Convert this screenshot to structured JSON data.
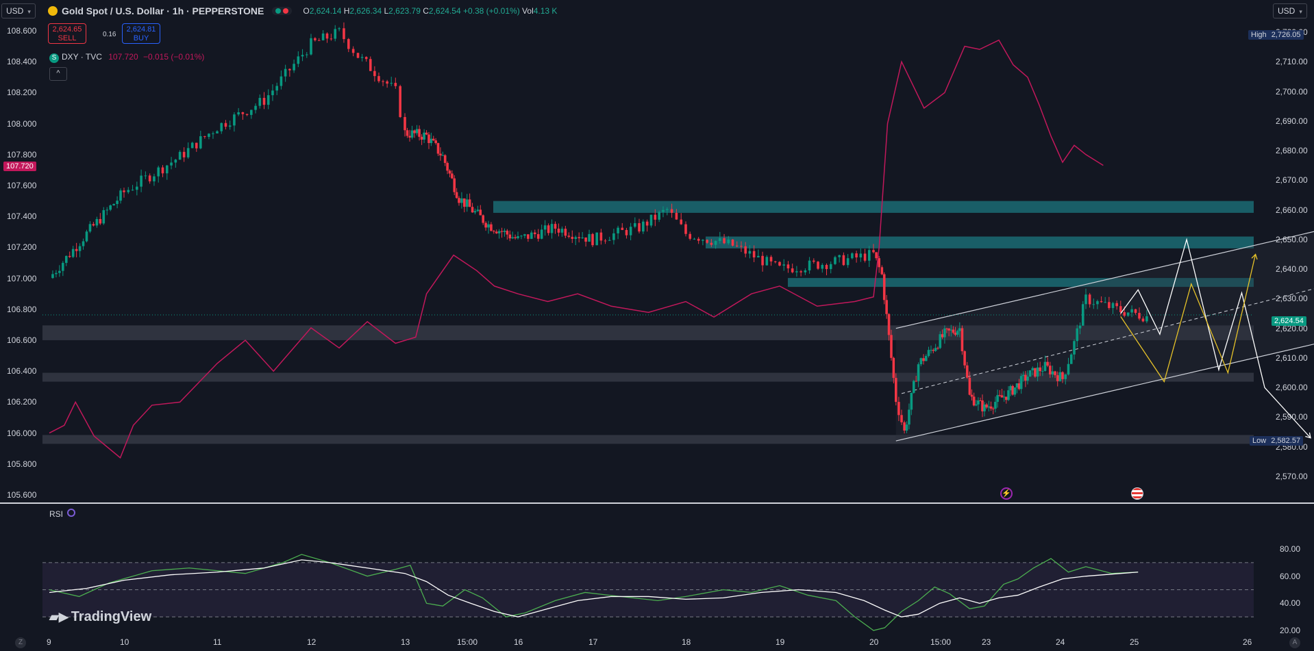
{
  "toolbar": {
    "currency_left": "USD",
    "currency_right": "USD",
    "symbol_title": "Gold Spot / U.S. Dollar · 1h · PEPPERSTONE",
    "ohlc": {
      "o_label": "O",
      "o": "2,624.14",
      "h_label": "H",
      "h": "2,626.34",
      "l_label": "L",
      "l": "2,623.79",
      "c_label": "C",
      "c": "2,624.54",
      "change": "+0.38 (+0.01%)",
      "vol_label": "Vol",
      "vol": "4.13 K"
    }
  },
  "trade": {
    "sell_price": "2,624.65",
    "sell_label": "SELL",
    "spread": "0.16",
    "buy_price": "2,624.81",
    "buy_label": "BUY"
  },
  "compare": {
    "symbol": "DXY · TVC",
    "value": "107.720",
    "change": "−0.015 (−0.01%)",
    "icon": "S"
  },
  "labels": {
    "high": "High",
    "high_value": "2,726.05",
    "low": "Low",
    "low_value": "2,582.57",
    "last_price": "2,624.54",
    "dxy_last": "107.720",
    "rsi": "RSI",
    "logo": "TradingView",
    "corner_z": "Z",
    "corner_a": "A"
  },
  "colors": {
    "up": "#089981",
    "down": "#f23645",
    "dxy_line": "#c2185b",
    "zone_teal": "#1b6b73",
    "zone_gray": "#3a3e4a",
    "rsi_green": "#4caf50"
  },
  "chart_data": [
    {
      "type": "candlestick",
      "title": "Gold Spot / U.S. Dollar · 1h · PEPPERSTONE",
      "ylim": [
        2564,
        2735
      ],
      "y_ticks": [
        2570,
        2580,
        2590,
        2600,
        2610,
        2620,
        2630,
        2640,
        2650,
        2660,
        2670,
        2680,
        2690,
        2700,
        2710,
        2720
      ],
      "y_tick_labels": [
        "2,570.00",
        "2,580.00",
        "2,590.00",
        "2,600.00",
        "2,610.00",
        "2,620.00",
        "2,630.00",
        "2,640.00",
        "2,650.00",
        "2,660.00",
        "2,670.00",
        "2,680.00",
        "2,690.00",
        "2,700.00",
        "2,710.00",
        "2,720.00"
      ],
      "x_ticks": [
        "9",
        "10",
        "11",
        "12",
        "13",
        "15:00",
        "16",
        "17",
        "18",
        "19",
        "20",
        "15:00",
        "23",
        "24",
        "25",
        "26"
      ],
      "price_path": [
        [
          9,
          2637
        ],
        [
          9.5,
          2652
        ],
        [
          10,
          2666
        ],
        [
          10.6,
          2678
        ],
        [
          11,
          2688
        ],
        [
          11.5,
          2697
        ],
        [
          12,
          2716
        ],
        [
          12.3,
          2720
        ],
        [
          12.5,
          2712
        ],
        [
          12.9,
          2700
        ],
        [
          13,
          2686
        ],
        [
          13.4,
          2685
        ],
        [
          13.7,
          2678
        ],
        [
          14,
          2664
        ],
        [
          14.5,
          2655
        ],
        [
          15,
          2650
        ],
        [
          15.5,
          2654
        ],
        [
          16,
          2650
        ],
        [
          16.5,
          2654
        ],
        [
          16.8,
          2660
        ],
        [
          17,
          2652
        ],
        [
          17.5,
          2648
        ],
        [
          18,
          2640
        ],
        [
          18.5,
          2642
        ],
        [
          19,
          2645
        ],
        [
          19.15,
          2638
        ],
        [
          19.4,
          2596
        ],
        [
          19.55,
          2585
        ],
        [
          19.8,
          2608
        ],
        [
          20.3,
          2618
        ],
        [
          20.6,
          2620
        ],
        [
          20.8,
          2597
        ],
        [
          21.1,
          2593
        ],
        [
          21.6,
          2598
        ],
        [
          22,
          2604
        ],
        [
          22.3,
          2607
        ],
        [
          22.6,
          2603
        ],
        [
          22.8,
          2615
        ],
        [
          23,
          2630
        ],
        [
          23.4,
          2626
        ],
        [
          23.7,
          2624
        ]
      ],
      "annotations": [
        {
          "type": "zone",
          "from": 2659,
          "to": 2663
        },
        {
          "type": "zone",
          "from": 2647,
          "to": 2651
        },
        {
          "type": "zone",
          "from": 2634,
          "to": 2637
        },
        {
          "type": "zone",
          "from": 2616,
          "to": 2621
        },
        {
          "type": "zone",
          "from": 2602,
          "to": 2605
        },
        {
          "type": "zone",
          "from": 2581,
          "to": 2584
        },
        {
          "type": "channel",
          "upper": [
            [
              19.4,
              2620
            ],
            [
              26.2,
              2656
            ]
          ],
          "mid": [
            [
              19.5,
              2598
            ],
            [
              26.2,
              2637
            ]
          ],
          "lower": [
            [
              19.4,
              2582
            ],
            [
              26.2,
              2618
            ]
          ]
        }
      ],
      "projections": [
        {
          "color": "#ffffff",
          "points": [
            [
              23.4,
              2625
            ],
            [
              23.6,
              2633
            ],
            [
              23.85,
              2618
            ],
            [
              24.15,
              2650
            ],
            [
              24.5,
              2606
            ],
            [
              24.75,
              2632
            ],
            [
              25,
              2600
            ],
            [
              25.5,
              2583
            ]
          ]
        },
        {
          "color": "#e6c229",
          "points": [
            [
              23.4,
              2624
            ],
            [
              23.9,
              2602
            ],
            [
              24.2,
              2635
            ],
            [
              24.6,
              2605
            ],
            [
              24.9,
              2645
            ]
          ]
        }
      ]
    },
    {
      "type": "line",
      "name": "DXY · TVC",
      "ylim": [
        105.5,
        108.85
      ],
      "y_ticks": [
        105.6,
        105.8,
        106.0,
        106.2,
        106.4,
        106.6,
        106.8,
        107.0,
        107.2,
        107.4,
        107.6,
        107.8,
        108.0,
        108.2,
        108.4,
        108.6
      ],
      "y_tick_labels": [
        "105.600",
        "105.800",
        "106.000",
        "106.200",
        "106.400",
        "106.600",
        "106.800",
        "107.000",
        "107.200",
        "107.400",
        "107.600",
        "107.800",
        "108.000",
        "108.200",
        "108.400",
        "108.600"
      ],
      "points": [
        [
          9,
          106.0
        ],
        [
          9.2,
          106.05
        ],
        [
          9.35,
          106.2
        ],
        [
          9.6,
          105.98
        ],
        [
          9.95,
          105.84
        ],
        [
          10.1,
          106.05
        ],
        [
          10.3,
          106.18
        ],
        [
          10.6,
          106.2
        ],
        [
          11.0,
          106.45
        ],
        [
          11.3,
          106.6
        ],
        [
          11.6,
          106.4
        ],
        [
          12.0,
          106.68
        ],
        [
          12.3,
          106.55
        ],
        [
          12.6,
          106.72
        ],
        [
          12.9,
          106.58
        ],
        [
          13.2,
          106.62
        ],
        [
          13.4,
          106.9
        ],
        [
          13.6,
          107.0
        ],
        [
          13.9,
          107.15
        ],
        [
          14.3,
          107.05
        ],
        [
          14.6,
          106.95
        ],
        [
          15.0,
          106.9
        ],
        [
          15.4,
          106.85
        ],
        [
          15.8,
          106.9
        ],
        [
          16.2,
          106.82
        ],
        [
          16.6,
          106.78
        ],
        [
          17.0,
          106.85
        ],
        [
          17.3,
          106.75
        ],
        [
          17.7,
          106.9
        ],
        [
          18.0,
          106.95
        ],
        [
          18.4,
          106.82
        ],
        [
          18.8,
          106.85
        ],
        [
          19.0,
          106.88
        ],
        [
          19.1,
          107.2
        ],
        [
          19.25,
          108.0
        ],
        [
          19.5,
          108.4
        ],
        [
          19.9,
          108.1
        ],
        [
          20.3,
          108.2
        ],
        [
          20.7,
          108.5
        ],
        [
          21.0,
          108.48
        ],
        [
          21.4,
          108.54
        ],
        [
          21.7,
          108.38
        ],
        [
          22.0,
          108.3
        ],
        [
          22.2,
          108.12
        ],
        [
          22.4,
          107.92
        ],
        [
          22.6,
          107.75
        ],
        [
          22.8,
          107.86
        ],
        [
          23.0,
          107.8
        ],
        [
          23.2,
          107.73
        ]
      ]
    },
    {
      "type": "line",
      "name": "RSI",
      "ylim": [
        15,
        85
      ],
      "y_ticks": [
        20,
        40,
        60,
        80
      ],
      "y_tick_labels": [
        "20.00",
        "40.00",
        "60.00",
        "80.00"
      ],
      "levels": [
        70,
        50,
        30
      ],
      "series": [
        {
          "color": "#4caf50",
          "points": [
            [
              9,
              50
            ],
            [
              9.4,
              45
            ],
            [
              9.8,
              55
            ],
            [
              10.3,
              64
            ],
            [
              10.7,
              66
            ],
            [
              11.3,
              62
            ],
            [
              11.7,
              70
            ],
            [
              11.9,
              76
            ],
            [
              12.2,
              70
            ],
            [
              12.6,
              60
            ],
            [
              12.9,
              65
            ],
            [
              13.1,
              68
            ],
            [
              13.4,
              40
            ],
            [
              13.7,
              38
            ],
            [
              14.1,
              50
            ],
            [
              14.4,
              44
            ],
            [
              14.8,
              30
            ],
            [
              15.1,
              33
            ],
            [
              15.5,
              42
            ],
            [
              15.9,
              48
            ],
            [
              16.3,
              45
            ],
            [
              16.7,
              42
            ],
            [
              17.0,
              45
            ],
            [
              17.4,
              50
            ],
            [
              17.7,
              48
            ],
            [
              18.0,
              53
            ],
            [
              18.3,
              46
            ],
            [
              18.6,
              42
            ],
            [
              18.8,
              30
            ],
            [
              19.0,
              20
            ],
            [
              19.2,
              22
            ],
            [
              19.5,
              34
            ],
            [
              19.8,
              42
            ],
            [
              20.1,
              52
            ],
            [
              20.4,
              47
            ],
            [
              20.8,
              36
            ],
            [
              21.1,
              38
            ],
            [
              21.5,
              54
            ],
            [
              21.8,
              58
            ],
            [
              22.1,
              66
            ],
            [
              22.4,
              73
            ],
            [
              22.7,
              63
            ],
            [
              23.0,
              67
            ],
            [
              23.3,
              62
            ],
            [
              23.6,
              63
            ]
          ]
        },
        {
          "color": "#ffffff",
          "points": [
            [
              9,
              48
            ],
            [
              9.5,
              51
            ],
            [
              10.0,
              57
            ],
            [
              10.5,
              61
            ],
            [
              11.0,
              63
            ],
            [
              11.5,
              66
            ],
            [
              11.9,
              72
            ],
            [
              12.2,
              70
            ],
            [
              12.6,
              66
            ],
            [
              13.0,
              62
            ],
            [
              13.4,
              56
            ],
            [
              13.8,
              46
            ],
            [
              14.2,
              40
            ],
            [
              14.6,
              34
            ],
            [
              15.0,
              30
            ],
            [
              15.4,
              36
            ],
            [
              15.8,
              42
            ],
            [
              16.2,
              45
            ],
            [
              16.6,
              45
            ],
            [
              17.0,
              43
            ],
            [
              17.4,
              44
            ],
            [
              17.8,
              48
            ],
            [
              18.2,
              50
            ],
            [
              18.6,
              48
            ],
            [
              18.9,
              42
            ],
            [
              19.2,
              35
            ],
            [
              19.5,
              30
            ],
            [
              19.8,
              32
            ],
            [
              20.2,
              40
            ],
            [
              20.6,
              44
            ],
            [
              21.0,
              40
            ],
            [
              21.4,
              44
            ],
            [
              21.8,
              46
            ],
            [
              22.2,
              52
            ],
            [
              22.6,
              58
            ],
            [
              23.0,
              60
            ],
            [
              23.4,
              62
            ],
            [
              23.6,
              63
            ]
          ]
        }
      ]
    }
  ]
}
